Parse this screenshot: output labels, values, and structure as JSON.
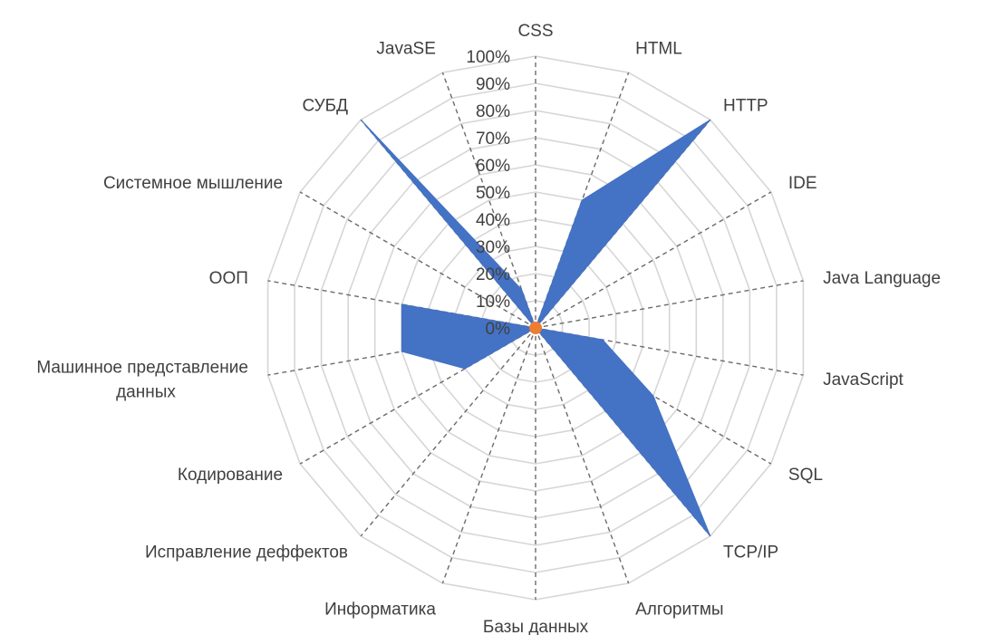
{
  "chart_data": {
    "type": "radar",
    "title": "",
    "categories": [
      "CSS",
      "HTML",
      "HTTP",
      "IDE",
      "Java Language",
      "JavaScript",
      "SQL",
      "TCP/IP",
      "Алгоритмы",
      "Базы данных",
      "Информатика",
      "Исправление деффектов",
      "Кодирование",
      "Машинное представление данных",
      "ООП",
      "Системное мышление",
      "СУБД",
      "JavaSE"
    ],
    "series": [
      {
        "values": [
          0,
          0.5,
          1.0,
          0,
          0,
          0.25,
          0.5,
          1.0,
          0,
          0,
          0,
          0,
          0.3,
          0.5,
          0.5,
          0,
          1.0,
          0.15
        ],
        "color": "#4472c4"
      }
    ],
    "ylim": [
      0,
      1
    ],
    "ticks": [
      "0%",
      "10%",
      "20%",
      "30%",
      "40%",
      "50%",
      "60%",
      "70%",
      "80%",
      "90%",
      "100%"
    ],
    "grid": true,
    "center_marker_color": "#ed7d31"
  }
}
